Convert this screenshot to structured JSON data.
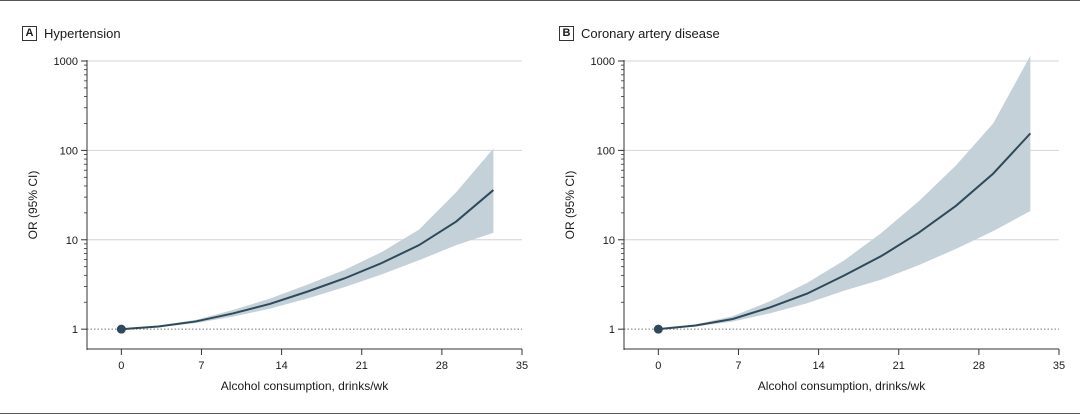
{
  "chart_data": [
    {
      "type": "line",
      "panel_letter": "A",
      "title": "Hypertension",
      "xlabel": "Alcohol consumption, drinks/wk",
      "ylabel": "OR (95% CI)",
      "y_scale": "log",
      "xlim": [
        -3,
        35
      ],
      "ylim": [
        0.6,
        1000
      ],
      "xticks": [
        0,
        7,
        14,
        21,
        28,
        35
      ],
      "yticks": [
        1,
        10,
        100,
        1000
      ],
      "grid": "horizontal",
      "reference_line": 1,
      "reference_point": {
        "x": 0,
        "y": 1
      },
      "x": [
        0,
        3.25,
        6.5,
        9.75,
        13,
        16.25,
        19.5,
        22.75,
        26,
        29.25,
        32.5
      ],
      "estimate": [
        1,
        1.07,
        1.22,
        1.5,
        1.92,
        2.63,
        3.7,
        5.5,
        8.7,
        16,
        36
      ],
      "ci_lower": [
        1,
        1.05,
        1.17,
        1.38,
        1.7,
        2.2,
        2.95,
        4.1,
        5.9,
        8.7,
        12
      ],
      "ci_upper": [
        1,
        1.1,
        1.27,
        1.64,
        2.2,
        3.15,
        4.6,
        7.3,
        13,
        34,
        105
      ],
      "color_line": "#2e4a5a",
      "color_band": "#c5d1d9"
    },
    {
      "type": "line",
      "panel_letter": "B",
      "title": "Coronary artery disease",
      "xlabel": "Alcohol consumption, drinks/wk",
      "ylabel": "OR (95% CI)",
      "y_scale": "log",
      "xlim": [
        -3,
        35
      ],
      "ylim": [
        0.6,
        1000
      ],
      "xticks": [
        0,
        7,
        14,
        21,
        28,
        35
      ],
      "yticks": [
        1,
        10,
        100,
        1000
      ],
      "grid": "horizontal",
      "reference_line": 1,
      "reference_point": {
        "x": 0,
        "y": 1
      },
      "x": [
        0,
        3.25,
        6.5,
        9.75,
        13,
        16.25,
        19.5,
        22.75,
        26,
        29.25,
        32.5
      ],
      "estimate": [
        1,
        1.1,
        1.3,
        1.75,
        2.5,
        4,
        6.6,
        12,
        24,
        55,
        155
      ],
      "ci_lower": [
        1,
        1.07,
        1.22,
        1.5,
        1.95,
        2.7,
        3.6,
        5.2,
        7.9,
        12.5,
        21
      ],
      "ci_upper": [
        1,
        1.13,
        1.4,
        2.05,
        3.3,
        5.9,
        12,
        27,
        68,
        200,
        1150
      ],
      "color_line": "#2e4a5a",
      "color_band": "#c5d1d9"
    }
  ]
}
